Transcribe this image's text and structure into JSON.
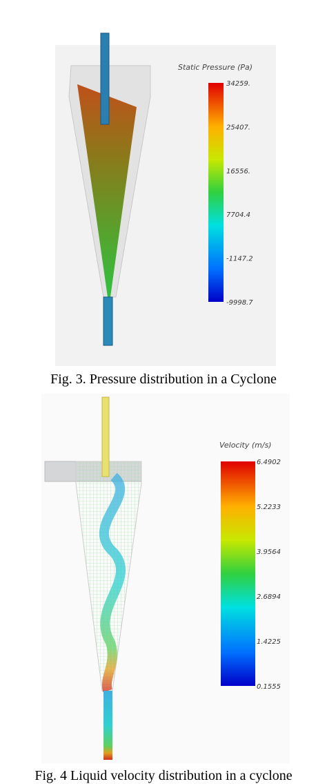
{
  "figures": [
    {
      "caption": "Fig. 3. Pressure distribution in a Cyclone",
      "colorbar": {
        "title": "Static Pressure (Pa)",
        "labels": [
          "34259.",
          "25407.",
          "16556.",
          "7704.4",
          "-1147.2",
          "-9998.7"
        ]
      }
    },
    {
      "caption": "Fig. 4 Liquid velocity distribution in a cyclone",
      "colorbar": {
        "title": "Velocity (m/s)",
        "labels": [
          "6.4902",
          "5.2233",
          "3.9564",
          "2.6894",
          "1.4225",
          "0.1555"
        ]
      }
    }
  ]
}
